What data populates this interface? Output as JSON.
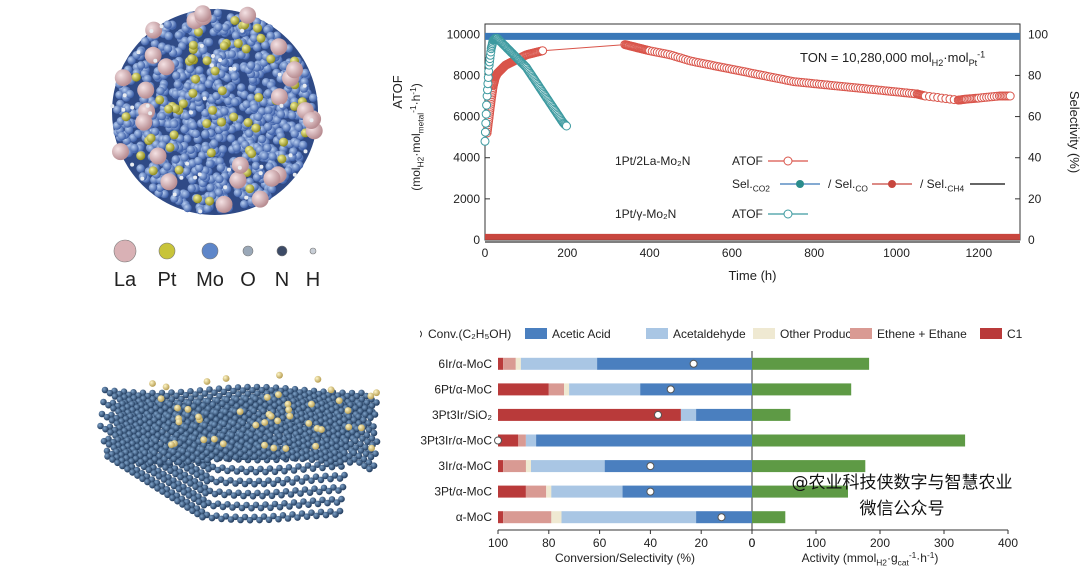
{
  "atom_legend": [
    {
      "label": "La",
      "color": "#d9b1b5",
      "size": 11
    },
    {
      "label": "Pt",
      "color": "#c8c43a",
      "size": 8
    },
    {
      "label": "Mo",
      "color": "#5e86c9",
      "size": 8
    },
    {
      "label": "O",
      "color": "#9aa8b8",
      "size": 5
    },
    {
      "label": "N",
      "color": "#3c4a66",
      "size": 5
    },
    {
      "label": "H",
      "color": "#c8ced6",
      "size": 3
    }
  ],
  "watermark": {
    "line1": "@农业科技侠数字与智慧农业",
    "line2": "微信公众号"
  },
  "chart_data": [
    {
      "type": "scatter",
      "xlabel": "Time (h)",
      "ylabel_left": "ATOF",
      "ylabel_left_units": "(mol",
      "ylabel_left_sub1": "H2",
      "ylabel_left_mid": "·mol",
      "ylabel_left_sub2": "metal",
      "ylabel_left_sup": "-1",
      "ylabel_left_tail": "·h",
      "ylabel_left_sup2": "-1",
      "ylabel_left_close": ")",
      "ylabel_right": "Selectivity (%)",
      "xlim": [
        0,
        1300
      ],
      "ylim_left": [
        0,
        10500
      ],
      "ylim_right": [
        0,
        105
      ],
      "x_ticks": [
        0,
        200,
        400,
        600,
        800,
        1000,
        1200
      ],
      "y_left_ticks": [
        0,
        2000,
        4000,
        6000,
        8000,
        10000
      ],
      "y_right_ticks": [
        0,
        20,
        40,
        60,
        80,
        100
      ],
      "annotation": {
        "text": "TON = 10,280,000 mol",
        "sub1": "H2",
        "mid": "·mol",
        "sub2": "Pt",
        "sup": "-1"
      },
      "legend": {
        "row1_sample": "1Pt/2La-Mo₂N",
        "row1_label": "ATOF",
        "row2_a": "Sel.",
        "row2_a_sub": "CO2",
        "row2_b": "/ Sel.",
        "row2_b_sub": "CO",
        "row2_c": "/ Sel.",
        "row2_c_sub": "CH4",
        "row3_sample": "1Pt/γ-Mo₂N",
        "row3_label": "ATOF"
      },
      "series": [
        {
          "name": "1Pt/2La-Mo₂N ATOF",
          "color": "#d9544a",
          "marker": "open-circle",
          "x": [
            5,
            10,
            15,
            20,
            25,
            30,
            40,
            50,
            60,
            70,
            80,
            100,
            120,
            140,
            340,
            360,
            380,
            400,
            450,
            500,
            550,
            600,
            650,
            700,
            750,
            800,
            850,
            900,
            950,
            1000,
            1050,
            1070,
            1150,
            1170,
            1200,
            1250,
            1280
          ],
          "y": [
            5200,
            6000,
            6800,
            7500,
            7900,
            8100,
            8300,
            8500,
            8600,
            8700,
            8800,
            9000,
            9100,
            9200,
            9500,
            9400,
            9300,
            9200,
            9000,
            8700,
            8500,
            8300,
            8100,
            7900,
            7700,
            7600,
            7500,
            7400,
            7300,
            7200,
            7100,
            7000,
            6800,
            6850,
            6900,
            7000,
            7000
          ]
        },
        {
          "name": "1Pt/γ-Mo₂N ATOF",
          "color": "#3d9aa0",
          "marker": "open-circle",
          "x": [
            0,
            5,
            10,
            15,
            20,
            25,
            30,
            40,
            50,
            60,
            70,
            80,
            90,
            100,
            110,
            120,
            130,
            140,
            150,
            160,
            170,
            180,
            190,
            200
          ],
          "y": [
            4800,
            7000,
            8500,
            9300,
            9700,
            9800,
            9800,
            9600,
            9400,
            9200,
            9000,
            8800,
            8600,
            8400,
            8100,
            7800,
            7500,
            7200,
            6900,
            6600,
            6300,
            6000,
            5700,
            5500
          ]
        },
        {
          "name": "Sel.CO2",
          "color": "#3a78b8",
          "marker": "filled-circle",
          "x": [
            0,
            1300
          ],
          "y_right": [
            99,
            99
          ]
        },
        {
          "name": "Sel.CO",
          "color": "#2a8c8c",
          "marker": "filled-circle",
          "x": [
            0,
            1300
          ],
          "y_right": [
            1.5,
            1.5
          ]
        },
        {
          "name": "Sel.CH4",
          "color": "#c8463e",
          "marker": "filled-circle",
          "x": [
            0,
            1300
          ],
          "y_right": [
            0.5,
            0.5
          ]
        }
      ]
    },
    {
      "type": "bar",
      "orientation": "horizontal",
      "categories": [
        "6Ir/α-MoC",
        "6Pt/α-MoC",
        "3Pt3Ir/SiO₂",
        "3Pt3Ir/α-MoC",
        "3Ir/α-MoC",
        "3Pt/α-MoC",
        "α-MoC"
      ],
      "left_xlabel": "Conversion/Selectivity (%)",
      "right_xlabel_a": "Activity (mmol",
      "right_xlabel_sub": "H2",
      "right_xlabel_b": "·g",
      "right_xlabel_sub2": "cat",
      "right_xlabel_sup": "-1",
      "right_xlabel_c": "·h",
      "right_xlabel_sup2": "-1",
      "right_xlabel_d": ")",
      "left_ticks": [
        100,
        80,
        60,
        40,
        20,
        0
      ],
      "right_ticks": [
        0,
        100,
        200,
        300,
        400
      ],
      "legend": [
        {
          "name": "Conv.(C₂H₅OH)",
          "color": "#ffffff",
          "marker": "open-circle"
        },
        {
          "name": "Acetic Acid",
          "color": "#4a7fbf"
        },
        {
          "name": "Acetaldehyde",
          "color": "#a9c6e4"
        },
        {
          "name": "Other Products",
          "color": "#efe9d2"
        },
        {
          "name": "Ethene + Ethane",
          "color": "#d99a93"
        },
        {
          "name": "C1",
          "color": "#b93a3a"
        }
      ],
      "selectivity": [
        {
          "C1": 2,
          "Ethene + Ethane": 5,
          "Other Products": 2,
          "Acetaldehyde": 30,
          "Acetic Acid": 61
        },
        {
          "C1": 20,
          "Ethene + Ethane": 6,
          "Other Products": 2,
          "Acetaldehyde": 28,
          "Acetic Acid": 44
        },
        {
          "C1": 72,
          "Ethene + Ethane": 0,
          "Other Products": 0,
          "Acetaldehyde": 6,
          "Acetic Acid": 22
        },
        {
          "C1": 8,
          "Ethene + Ethane": 3,
          "Other Products": 0,
          "Acetaldehyde": 4,
          "Acetic Acid": 85
        },
        {
          "C1": 2,
          "Ethene + Ethane": 9,
          "Other Products": 2,
          "Acetaldehyde": 29,
          "Acetic Acid": 58
        },
        {
          "C1": 11,
          "Ethene + Ethane": 8,
          "Other Products": 2,
          "Acetaldehyde": 28,
          "Acetic Acid": 51
        },
        {
          "C1": 2,
          "Ethene + Ethane": 19,
          "Other Products": 4,
          "Acetaldehyde": 53,
          "Acetic Acid": 22
        }
      ],
      "conversion": [
        23,
        32,
        37,
        100,
        40,
        40,
        12
      ],
      "activity": [
        183,
        155,
        60,
        333,
        177,
        150,
        52
      ],
      "activity_color": "#5e9a45"
    }
  ]
}
